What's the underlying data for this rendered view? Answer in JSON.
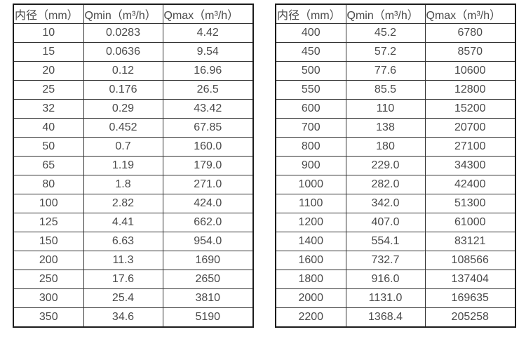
{
  "tables": [
    {
      "headers": [
        "内径（mm）",
        "Qmin（m³/h）",
        "Qmax（m³/h）"
      ],
      "rows": [
        [
          "10",
          "0.0283",
          "4.42"
        ],
        [
          "15",
          "0.0636",
          "9.54"
        ],
        [
          "20",
          "0.12",
          "16.96"
        ],
        [
          "25",
          "0.176",
          "26.5"
        ],
        [
          "32",
          "0.29",
          "43.42"
        ],
        [
          "40",
          "0.452",
          "67.85"
        ],
        [
          "50",
          "0.7",
          "160.0"
        ],
        [
          "65",
          "1.19",
          "179.0"
        ],
        [
          "80",
          "1.8",
          "271.0"
        ],
        [
          "100",
          "2.82",
          "424.0"
        ],
        [
          "125",
          "4.41",
          "662.0"
        ],
        [
          "150",
          "6.63",
          "954.0"
        ],
        [
          "200",
          "11.3",
          "1690"
        ],
        [
          "250",
          "17.6",
          "2650"
        ],
        [
          "300",
          "25.4",
          "3810"
        ],
        [
          "350",
          "34.6",
          "5190"
        ]
      ]
    },
    {
      "headers": [
        "内径（mm）",
        "Qmin（m³/h）",
        "Qmax（m³/h）"
      ],
      "rows": [
        [
          "400",
          "45.2",
          "6780"
        ],
        [
          "450",
          "57.2",
          "8570"
        ],
        [
          "500",
          "77.6",
          "10600"
        ],
        [
          "550",
          "85.5",
          "12800"
        ],
        [
          "600",
          "110",
          "15200"
        ],
        [
          "700",
          "138",
          "20700"
        ],
        [
          "800",
          "180",
          "27100"
        ],
        [
          "900",
          "229.0",
          "34300"
        ],
        [
          "1000",
          "282.0",
          "42400"
        ],
        [
          "1100",
          "342.0",
          "51300"
        ],
        [
          "1200",
          "407.0",
          "61000"
        ],
        [
          "1400",
          "554.1",
          "83121"
        ],
        [
          "1600",
          "732.7",
          "108566"
        ],
        [
          "1800",
          "916.0",
          "137404"
        ],
        [
          "2000",
          "1131.0",
          "169635"
        ],
        [
          "2200",
          "1368.4",
          "205258"
        ]
      ]
    }
  ]
}
